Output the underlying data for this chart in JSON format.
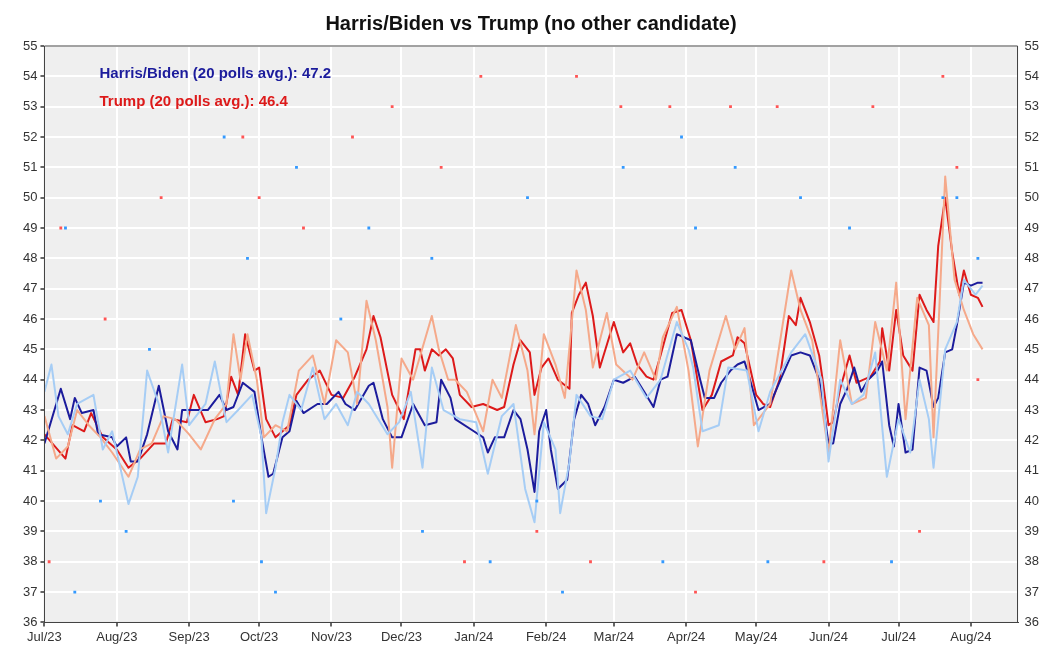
{
  "chart_data": {
    "type": "line",
    "title": "Harris/Biden vs Trump (no other candidate)",
    "xlim": [
      "2023-07-01",
      "2024-08-21"
    ],
    "xticks": [
      {
        "value": "2023-07-01",
        "label": "Jul/23"
      },
      {
        "value": "2023-08-01",
        "label": "Aug/23"
      },
      {
        "value": "2023-09-01",
        "label": "Sep/23"
      },
      {
        "value": "2023-10-01",
        "label": "Oct/23"
      },
      {
        "value": "2023-11-01",
        "label": "Nov/23"
      },
      {
        "value": "2023-12-01",
        "label": "Dec/23"
      },
      {
        "value": "2024-01-01",
        "label": "Jan/24"
      },
      {
        "value": "2024-02-01",
        "label": "Feb/24"
      },
      {
        "value": "2024-03-01",
        "label": "Mar/24"
      },
      {
        "value": "2024-04-01",
        "label": "Apr/24"
      },
      {
        "value": "2024-05-01",
        "label": "May/24"
      },
      {
        "value": "2024-06-01",
        "label": "Jun/24"
      },
      {
        "value": "2024-07-01",
        "label": "Jul/24"
      },
      {
        "value": "2024-08-01",
        "label": "Aug/24"
      }
    ],
    "ylim": [
      36,
      55
    ],
    "yticks": [
      36,
      37,
      38,
      39,
      40,
      41,
      42,
      43,
      44,
      45,
      46,
      47,
      48,
      49,
      50,
      51,
      52,
      53,
      54,
      55
    ],
    "y2lim": [
      36,
      55
    ],
    "y2ticks": [
      36,
      37,
      38,
      39,
      40,
      41,
      42,
      43,
      44,
      45,
      46,
      47,
      48,
      49,
      50,
      51,
      52,
      53,
      54,
      55
    ],
    "grid": true,
    "legend": "top left",
    "line_style": "solid",
    "series": [
      {
        "type": "scatter",
        "marker": "square",
        "color": "#3399ff",
        "x": [
          "2023-07-10",
          "2023-07-14",
          "2023-07-25",
          "2023-08-05",
          "2023-08-15",
          "2023-09-16",
          "2023-09-20",
          "2023-09-26",
          "2023-10-02",
          "2023-10-08",
          "2023-10-17",
          "2023-11-05",
          "2023-11-17",
          "2023-12-10",
          "2023-12-14",
          "2024-01-08",
          "2024-01-24",
          "2024-01-28",
          "2024-02-08",
          "2024-03-05",
          "2024-03-22",
          "2024-03-30",
          "2024-04-05",
          "2024-04-22",
          "2024-05-06",
          "2024-05-20",
          "2024-06-10",
          "2024-06-28",
          "2024-07-20",
          "2024-07-26",
          "2024-08-04"
        ],
        "values": [
          49,
          37,
          40,
          39,
          45,
          52,
          40,
          48,
          38,
          37,
          51,
          46,
          49,
          39,
          48,
          38,
          50,
          40,
          37,
          51,
          38,
          52,
          49,
          51,
          38,
          50,
          49,
          38,
          50,
          50,
          48
        ]
      },
      {
        "type": "scatter",
        "marker": "square",
        "color": "#ff5555",
        "x": [
          "2023-07-03",
          "2023-07-08",
          "2023-07-27",
          "2023-08-20",
          "2023-09-24",
          "2023-10-01",
          "2023-10-20",
          "2023-11-10",
          "2023-11-27",
          "2023-12-18",
          "2023-12-28",
          "2024-01-04",
          "2024-01-28",
          "2024-02-14",
          "2024-02-20",
          "2024-03-04",
          "2024-03-25",
          "2024-04-05",
          "2024-04-20",
          "2024-05-10",
          "2024-05-30",
          "2024-06-20",
          "2024-07-10",
          "2024-07-20",
          "2024-07-26",
          "2024-08-04"
        ],
        "values": [
          38,
          49,
          46,
          50,
          52,
          50,
          49,
          52,
          53,
          51,
          38,
          54,
          39,
          54,
          38,
          53,
          53,
          37,
          53,
          53,
          38,
          53,
          39,
          54,
          51,
          44
        ]
      },
      {
        "type": "line",
        "color": "#a6cdf5",
        "x": [
          "2023-07-01",
          "2023-07-04",
          "2023-07-07",
          "2023-07-11",
          "2023-07-15",
          "2023-07-22",
          "2023-07-26",
          "2023-07-30",
          "2023-08-06",
          "2023-08-10",
          "2023-08-14",
          "2023-08-19",
          "2023-08-23",
          "2023-08-29",
          "2023-09-01",
          "2023-09-08",
          "2023-09-12",
          "2023-09-17",
          "2023-09-22",
          "2023-09-28",
          "2023-10-02",
          "2023-10-04",
          "2023-10-08",
          "2023-10-11",
          "2023-10-14",
          "2023-10-19",
          "2023-10-24",
          "2023-10-29",
          "2023-11-03",
          "2023-11-08",
          "2023-11-12",
          "2023-11-17",
          "2023-11-25",
          "2023-11-30",
          "2023-12-05",
          "2023-12-10",
          "2023-12-14",
          "2023-12-19",
          "2023-12-26",
          "2024-01-02",
          "2024-01-07",
          "2024-01-13",
          "2024-01-18",
          "2024-01-23",
          "2024-01-27",
          "2024-01-31",
          "2024-02-05",
          "2024-02-07",
          "2024-02-11",
          "2024-02-14",
          "2024-02-20",
          "2024-02-25",
          "2024-03-01",
          "2024-03-08",
          "2024-03-15",
          "2024-03-21",
          "2024-03-28",
          "2024-04-02",
          "2024-04-04",
          "2024-04-08",
          "2024-04-15",
          "2024-04-19",
          "2024-04-27",
          "2024-05-02",
          "2024-05-07",
          "2024-05-16",
          "2024-05-22",
          "2024-05-29",
          "2024-06-01",
          "2024-06-06",
          "2024-06-11",
          "2024-06-16",
          "2024-06-21",
          "2024-06-26",
          "2024-07-01",
          "2024-07-06",
          "2024-07-10",
          "2024-07-14",
          "2024-07-16",
          "2024-07-21",
          "2024-07-26",
          "2024-07-29",
          "2024-08-03",
          "2024-08-06"
        ],
        "values": [
          43.6,
          44.5,
          42.8,
          42.2,
          43.2,
          43.5,
          41.7,
          42.3,
          39.9,
          40.8,
          44.3,
          43.2,
          41.6,
          44.5,
          42.5,
          43.2,
          44.6,
          42.6,
          43.0,
          43.5,
          42.1,
          39.6,
          41.1,
          42.6,
          43.5,
          43.0,
          44.4,
          42.7,
          43.2,
          42.5,
          43.6,
          43.2,
          42.2,
          42.6,
          43.6,
          41.1,
          44.4,
          43.0,
          42.7,
          42.6,
          40.9,
          42.8,
          43.2,
          40.4,
          39.3,
          42.6,
          41.7,
          39.6,
          41.3,
          43.5,
          42.8,
          42.7,
          44.0,
          44.3,
          43.4,
          44.0,
          45.9,
          45.0,
          44.4,
          42.3,
          42.5,
          44.4,
          44.3,
          42.3,
          43.6,
          44.9,
          45.5,
          44.0,
          41.3,
          44.0,
          43.2,
          43.5,
          44.9,
          40.8,
          42.7,
          41.6,
          44.0,
          42.7,
          41.1,
          45.0,
          45.9,
          47.3,
          46.8,
          47.1
        ]
      },
      {
        "type": "line",
        "color": "#f5a98a",
        "x": [
          "2023-07-01",
          "2023-07-06",
          "2023-07-11",
          "2023-07-15",
          "2023-07-20",
          "2023-07-25",
          "2023-07-30",
          "2023-08-06",
          "2023-08-11",
          "2023-08-16",
          "2023-08-21",
          "2023-08-26",
          "2023-09-01",
          "2023-09-06",
          "2023-09-12",
          "2023-09-17",
          "2023-09-20",
          "2023-09-23",
          "2023-09-26",
          "2023-09-30",
          "2023-10-03",
          "2023-10-08",
          "2023-10-13",
          "2023-10-18",
          "2023-10-24",
          "2023-10-29",
          "2023-11-03",
          "2023-11-08",
          "2023-11-12",
          "2023-11-16",
          "2023-11-20",
          "2023-11-25",
          "2023-11-27",
          "2023-12-01",
          "2023-12-06",
          "2023-12-14",
          "2023-12-17",
          "2023-12-21",
          "2023-12-24",
          "2023-12-29",
          "2024-01-05",
          "2024-01-09",
          "2024-01-13",
          "2024-01-19",
          "2024-01-24",
          "2024-01-27",
          "2024-01-31",
          "2024-02-05",
          "2024-02-09",
          "2024-02-14",
          "2024-02-18",
          "2024-02-21",
          "2024-02-27",
          "2024-03-02",
          "2024-03-09",
          "2024-03-14",
          "2024-03-19",
          "2024-03-22",
          "2024-03-28",
          "2024-04-02",
          "2024-04-06",
          "2024-04-11",
          "2024-04-18",
          "2024-04-22",
          "2024-04-26",
          "2024-04-30",
          "2024-05-07",
          "2024-05-16",
          "2024-05-20",
          "2024-05-25",
          "2024-06-01",
          "2024-06-06",
          "2024-06-11",
          "2024-06-17",
          "2024-06-21",
          "2024-06-26",
          "2024-06-30",
          "2024-07-04",
          "2024-07-09",
          "2024-07-14",
          "2024-07-16",
          "2024-07-21",
          "2024-07-25",
          "2024-07-29",
          "2024-08-02",
          "2024-08-06"
        ],
        "values": [
          42.8,
          41.4,
          41.8,
          43.0,
          42.5,
          42.1,
          41.6,
          40.8,
          41.7,
          41.9,
          42.8,
          42.7,
          42.2,
          41.7,
          42.7,
          43.2,
          45.5,
          44.0,
          45.5,
          44.0,
          42.1,
          42.5,
          42.3,
          44.3,
          44.8,
          43.2,
          45.3,
          44.9,
          43.2,
          46.6,
          45.3,
          43.1,
          41.1,
          44.7,
          44.0,
          46.1,
          45.0,
          44.0,
          44.0,
          43.6,
          42.3,
          44.0,
          43.4,
          45.8,
          44.3,
          42.2,
          45.5,
          44.5,
          43.4,
          47.6,
          46.3,
          44.4,
          46.2,
          44.5,
          44.0,
          44.9,
          44.0,
          45.4,
          46.4,
          44.3,
          41.8,
          44.3,
          46.1,
          45.0,
          45.7,
          42.5,
          43.2,
          47.6,
          46.3,
          45.3,
          41.6,
          45.3,
          43.2,
          43.4,
          45.9,
          44.3,
          47.2,
          42.7,
          46.7,
          45.8,
          42.1,
          50.7,
          47.3,
          46.3,
          45.5,
          45.0
        ]
      },
      {
        "type": "line",
        "name": "Harris/Biden (20 polls avg.): 47.2",
        "color": "#1c1c9c",
        "x": [
          "2023-07-01",
          "2023-07-08",
          "2023-07-12",
          "2023-07-14",
          "2023-07-17",
          "2023-07-22",
          "2023-07-24",
          "2023-07-30",
          "2023-08-01",
          "2023-08-05",
          "2023-08-07",
          "2023-08-10",
          "2023-08-14",
          "2023-08-19",
          "2023-08-23",
          "2023-08-27",
          "2023-08-29",
          "2023-09-04",
          "2023-09-09",
          "2023-09-14",
          "2023-09-17",
          "2023-09-20",
          "2023-09-24",
          "2023-09-29",
          "2023-10-02",
          "2023-10-05",
          "2023-10-07",
          "2023-10-11",
          "2023-10-14",
          "2023-10-17",
          "2023-10-20",
          "2023-10-26",
          "2023-10-30",
          "2023-11-04",
          "2023-11-07",
          "2023-11-11",
          "2023-11-17",
          "2023-11-19",
          "2023-11-23",
          "2023-11-27",
          "2023-12-01",
          "2023-12-06",
          "2023-12-11",
          "2023-12-16",
          "2023-12-18",
          "2023-12-22",
          "2023-12-24",
          "2024-01-01",
          "2024-01-05",
          "2024-01-07",
          "2024-01-10",
          "2024-01-14",
          "2024-01-18",
          "2024-01-21",
          "2024-01-24",
          "2024-01-27",
          "2024-01-29",
          "2024-02-01",
          "2024-02-03",
          "2024-02-06",
          "2024-02-10",
          "2024-02-13",
          "2024-02-16",
          "2024-02-19",
          "2024-02-22",
          "2024-02-26",
          "2024-03-01",
          "2024-03-05",
          "2024-03-10",
          "2024-03-14",
          "2024-03-18",
          "2024-03-21",
          "2024-03-24",
          "2024-03-28",
          "2024-03-31",
          "2024-04-03",
          "2024-04-07",
          "2024-04-09",
          "2024-04-13",
          "2024-04-16",
          "2024-04-20",
          "2024-04-23",
          "2024-04-26",
          "2024-04-28",
          "2024-05-02",
          "2024-05-07",
          "2024-05-12",
          "2024-05-16",
          "2024-05-20",
          "2024-05-24",
          "2024-05-28",
          "2024-06-01",
          "2024-06-03",
          "2024-06-06",
          "2024-06-09",
          "2024-06-12",
          "2024-06-15",
          "2024-06-18",
          "2024-06-22",
          "2024-06-24",
          "2024-06-27",
          "2024-06-29",
          "2024-07-01",
          "2024-07-04",
          "2024-07-07",
          "2024-07-10",
          "2024-07-13",
          "2024-07-16",
          "2024-07-18",
          "2024-07-21",
          "2024-07-24",
          "2024-07-26",
          "2024-07-29",
          "2024-08-01",
          "2024-08-04",
          "2024-08-06"
        ],
        "values": [
          41.9,
          43.7,
          42.7,
          43.4,
          42.9,
          43.0,
          42.2,
          42.1,
          41.8,
          42.1,
          41.3,
          41.3,
          42.2,
          43.8,
          42.3,
          41.7,
          43.0,
          43.0,
          43.0,
          43.5,
          43.0,
          43.1,
          43.9,
          43.6,
          42.1,
          40.8,
          40.9,
          42.1,
          42.3,
          43.3,
          42.9,
          43.2,
          43.2,
          43.6,
          43.2,
          43.0,
          43.8,
          43.9,
          42.7,
          42.1,
          42.1,
          43.2,
          42.5,
          42.6,
          44.0,
          43.4,
          42.7,
          42.3,
          42.1,
          41.6,
          42.1,
          42.1,
          43.0,
          42.7,
          41.7,
          40.3,
          42.3,
          43.0,
          41.7,
          40.4,
          40.7,
          42.7,
          43.5,
          43.2,
          42.5,
          43.1,
          44.0,
          43.9,
          44.1,
          43.6,
          43.1,
          44.0,
          44.1,
          45.5,
          45.4,
          45.3,
          44.0,
          43.4,
          43.4,
          43.9,
          44.3,
          44.5,
          44.6,
          44.1,
          43.0,
          43.2,
          44.1,
          44.8,
          44.9,
          44.8,
          44.0,
          41.9,
          41.9,
          43.2,
          43.7,
          44.4,
          43.6,
          44.0,
          44.3,
          44.6,
          42.5,
          41.8,
          43.2,
          41.6,
          41.7,
          44.4,
          44.3,
          43.1,
          43.4,
          44.9,
          45.0,
          45.8,
          47.2,
          47.1,
          47.2,
          47.2
        ]
      },
      {
        "type": "line",
        "name": "Trump (20 polls avg.): 46.4",
        "color": "#dd1a1a",
        "x": [
          "2023-07-01",
          "2023-07-10",
          "2023-07-13",
          "2023-07-18",
          "2023-07-21",
          "2023-07-26",
          "2023-08-01",
          "2023-08-06",
          "2023-08-11",
          "2023-08-17",
          "2023-08-22",
          "2023-08-25",
          "2023-08-31",
          "2023-09-03",
          "2023-09-08",
          "2023-09-13",
          "2023-09-16",
          "2023-09-19",
          "2023-09-22",
          "2023-09-25",
          "2023-09-29",
          "2023-10-01",
          "2023-10-04",
          "2023-10-08",
          "2023-10-11",
          "2023-10-14",
          "2023-10-17",
          "2023-10-22",
          "2023-10-27",
          "2023-11-01",
          "2023-11-06",
          "2023-11-11",
          "2023-11-16",
          "2023-11-19",
          "2023-11-22",
          "2023-11-27",
          "2023-12-02",
          "2023-12-07",
          "2023-12-09",
          "2023-12-11",
          "2023-12-14",
          "2023-12-17",
          "2023-12-20",
          "2023-12-23",
          "2023-12-26",
          "2023-12-31",
          "2024-01-05",
          "2024-01-08",
          "2024-01-11",
          "2024-01-14",
          "2024-01-18",
          "2024-01-21",
          "2024-01-25",
          "2024-01-27",
          "2024-01-30",
          "2024-02-02",
          "2024-02-06",
          "2024-02-11",
          "2024-02-12",
          "2024-02-15",
          "2024-02-18",
          "2024-02-21",
          "2024-02-24",
          "2024-03-01",
          "2024-03-05",
          "2024-03-08",
          "2024-03-11",
          "2024-03-15",
          "2024-03-18",
          "2024-03-21",
          "2024-03-26",
          "2024-03-30",
          "2024-04-03",
          "2024-04-08",
          "2024-04-12",
          "2024-04-16",
          "2024-04-21",
          "2024-04-23",
          "2024-04-26",
          "2024-05-01",
          "2024-05-04",
          "2024-05-07",
          "2024-05-11",
          "2024-05-15",
          "2024-05-18",
          "2024-05-20",
          "2024-05-24",
          "2024-05-28",
          "2024-05-30",
          "2024-06-01",
          "2024-06-03",
          "2024-06-06",
          "2024-06-10",
          "2024-06-13",
          "2024-06-16",
          "2024-06-19",
          "2024-06-23",
          "2024-06-24",
          "2024-06-27",
          "2024-06-30",
          "2024-07-03",
          "2024-07-07",
          "2024-07-10",
          "2024-07-13",
          "2024-07-16",
          "2024-07-18",
          "2024-07-21",
          "2024-07-24",
          "2024-07-27",
          "2024-07-29",
          "2024-08-01",
          "2024-08-04",
          "2024-08-06"
        ],
        "values": [
          42.2,
          41.4,
          42.5,
          42.3,
          42.9,
          42.1,
          41.7,
          41.1,
          41.4,
          41.9,
          41.9,
          42.7,
          42.6,
          43.5,
          42.6,
          42.7,
          42.8,
          44.1,
          43.5,
          45.5,
          44.3,
          44.4,
          42.7,
          42.1,
          42.3,
          42.5,
          43.5,
          44.0,
          44.3,
          43.5,
          43.4,
          44.1,
          45.0,
          46.1,
          45.4,
          43.5,
          42.7,
          45.0,
          45.0,
          44.3,
          45.0,
          44.8,
          45.0,
          44.7,
          43.5,
          43.1,
          43.2,
          43.1,
          43.0,
          43.1,
          44.5,
          45.3,
          44.9,
          43.5,
          44.4,
          44.7,
          44.0,
          43.7,
          46.2,
          46.8,
          47.2,
          46.1,
          44.4,
          45.9,
          44.9,
          45.2,
          44.5,
          44.1,
          44.0,
          44.8,
          46.2,
          46.3,
          45.3,
          43.0,
          43.5,
          44.6,
          44.8,
          45.4,
          45.2,
          43.5,
          43.2,
          43.1,
          44.0,
          46.1,
          45.8,
          46.7,
          45.9,
          44.8,
          43.7,
          42.5,
          42.6,
          43.7,
          44.8,
          43.9,
          44.0,
          44.1,
          44.6,
          45.7,
          44.3,
          46.3,
          44.8,
          44.3,
          46.8,
          46.3,
          45.9,
          48.4,
          50.0,
          48.2,
          46.8,
          47.6,
          46.8,
          46.7,
          46.4
        ]
      }
    ]
  }
}
